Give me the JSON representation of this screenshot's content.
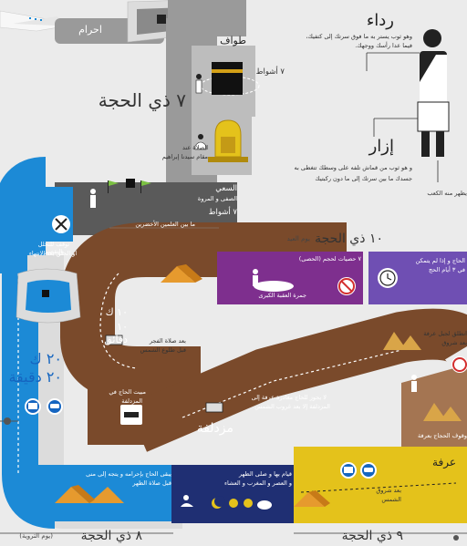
{
  "colors": {
    "background": "#ebebeb",
    "road_gray": "#9a9a9a",
    "road_dark_gray": "#5a5a5a",
    "road_light_gray": "#bdbdbd",
    "road_blue": "#1c8ad6",
    "road_brown": "#7a4a2b",
    "road_light_brown": "#a47552",
    "road_purple": "#7e2f8e",
    "road_indigo": "#6f4fb3",
    "road_yellow": "#e4c21b",
    "road_navy": "#1f2f73",
    "sign_blue": "#1565c0",
    "sign_red": "#d32f2f"
  },
  "labels": {
    "ihram": "احرام",
    "tawaf": "طواف",
    "tawaf_rounds": "٧ أشواط",
    "date_8th": "٧ ذي الحجة",
    "prayer_1": "الصلاة عند",
    "prayer_2": "مقام سيدنا إبراهيم",
    "saee_1": "السعي",
    "saee_2": "الصفى و المروة",
    "saee_rounds": "٧ أشواط",
    "saee_note": "ما بين العلمين الأخضرين",
    "mina_note_1": "توقف للتحلل بالتقصير",
    "mina_note_2": "او الحلق بعد الانتهاء",
    "rida_title": "رداء",
    "rida_desc_1": "وهو ثوب يستر به ما فوق سرتك إلى كتفيك،",
    "rida_desc_2": "فيما عدا رأسك ووجهك.",
    "izar_title": "إزار",
    "izar_desc_1": "و هو ثوب من قماش تلفه على وسطك تتغطى به",
    "izar_desc_2": "جسدك ما بين سرتك إلى ما دون ركبتيك",
    "kaaba_note": "يظهر منه الكعب",
    "date_10th": "١٠ ذي الحجة",
    "date_10th_sub": "يوم العيد",
    "jamarat_1": "٧ حصيات لحجم (الحصى)",
    "jamarat_2": "جمرة العقبة الكبرى",
    "purple_note_1": "الحاج و إذا لم يتمكن",
    "purple_note_2": "في ٣ أيام الحج",
    "travel_time_1": "٢٠ ك",
    "travel_time_2": "٢٠ دقيقة",
    "tent_time_1": "١٠ ك",
    "tent_time_2": "١٠ دقائق",
    "fajr_1": "بعد صلاة الفجر",
    "fajr_2": "قبل طلوع الشمس",
    "arafat_leave_1": "انطلق لجبل عرفة",
    "arafat_leave_2": "بعد شروق",
    "muzdalifa_rule_1": "لا يجوز للحاج مغادرة عرفة إلى",
    "muzdalifa_rule_2": "المزدلفة إلا بعد غروب الشمس",
    "muzdalifa": "مزدلفة",
    "muzdalifa_sleep_1": "مبيت الحاج في",
    "muzdalifa_sleep_2": "المزدلفة",
    "waqf": "وقوف الحجاج بعرفة",
    "arafa": "عرفة",
    "sunrise_1": "بعد شروق",
    "sunrise_2": "الشمس",
    "mina_stay_1": "يبقى الحاج بإحرامه و يتجه إلى منى",
    "mina_stay_2": "قبل صلاة الظهر",
    "prayers_1": "قيام بها و صلى الظهر",
    "prayers_2": "و العصر و المغرب و العشاء",
    "date_8": "٨ ذي الحجة",
    "date_8_sub": "(يوم التروية)",
    "date_9": "٩ ذي الحجة"
  },
  "icons": [
    "kaaba-icon",
    "pilgrim-icon",
    "shrine-icon",
    "flag-icon",
    "tools-icon",
    "tent-icon",
    "bus-icon",
    "car-icon",
    "bed-icon",
    "no-entry-icon",
    "moon-icon",
    "sun-icon",
    "pebbles-icon",
    "mountain-icon",
    "praying-icon",
    "clock-icon",
    "stadium-icon",
    "airplane-icon"
  ]
}
